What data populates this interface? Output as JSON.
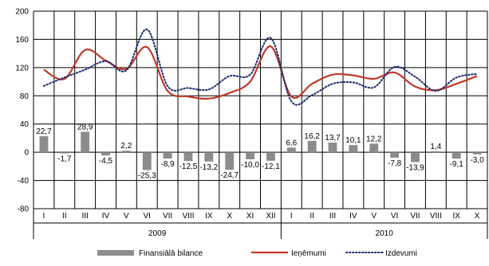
{
  "chart_data": {
    "type": "bar",
    "title": "",
    "xlabel": "",
    "ylabel": "",
    "ylim": [
      -80,
      200
    ],
    "yticks": [
      -80,
      -40,
      0,
      40,
      80,
      120,
      160,
      200
    ],
    "grid": true,
    "legend_position": "bottom",
    "categories": [
      "I",
      "II",
      "III",
      "IV",
      "V",
      "VI",
      "VII",
      "VIII",
      "IX",
      "X",
      "XI",
      "XII",
      "I",
      "II",
      "III",
      "IV",
      "V",
      "VI",
      "VII",
      "VIII",
      "IX",
      "X"
    ],
    "years": [
      {
        "label": "2009",
        "start": 0,
        "end": 11
      },
      {
        "label": "2010",
        "start": 12,
        "end": 21
      }
    ],
    "series": [
      {
        "name": "Finansiālā bilance",
        "type": "bar",
        "color": "#8c8c8c",
        "values": [
          22.7,
          -1.7,
          28.9,
          -4.5,
          2.2,
          -25.3,
          -8.9,
          -12.5,
          -13.2,
          -24.7,
          -10.0,
          -12.1,
          6.6,
          16.2,
          13.7,
          10.1,
          12.2,
          -7.8,
          -13.9,
          1.4,
          -9.1,
          -3.0
        ],
        "labels": [
          "22,7",
          "-1,7",
          "28,9",
          "-4,5",
          "2,2",
          "-25,3",
          "-8,9",
          "-12,5",
          "-13,2",
          "-24,7",
          "-10,0",
          "-12,1",
          "6,6",
          "16,2",
          "13,7",
          "10,1",
          "12,2",
          "-7,8",
          "-13,9",
          "1,4",
          "-9,1",
          "-3,0"
        ]
      },
      {
        "name": "Ieņēmumi",
        "type": "line",
        "color": "#c0392b",
        "values": [
          117,
          104,
          145,
          130,
          118,
          149,
          87,
          79,
          76,
          84,
          100,
          150,
          79,
          97,
          110,
          109,
          104,
          113,
          93,
          88,
          97,
          108
        ]
      },
      {
        "name": "Izdevumi",
        "type": "line",
        "color": "#1a2a6c",
        "dash": "dotted",
        "values": [
          94,
          106,
          117,
          129,
          116,
          174,
          94,
          91,
          89,
          108,
          110,
          162,
          72,
          81,
          97,
          99,
          92,
          121,
          107,
          87,
          106,
          111
        ]
      }
    ]
  }
}
